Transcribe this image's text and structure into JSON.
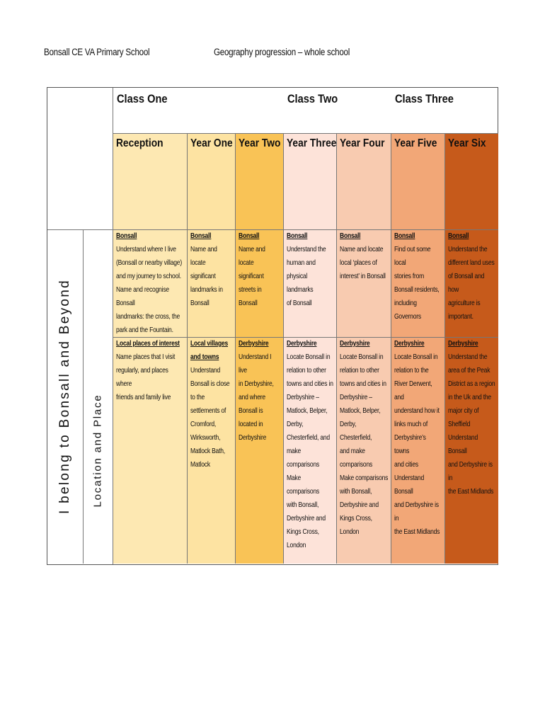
{
  "header": {
    "school": "Bonsall CE VA Primary School",
    "subject": "Geography progression – whole school"
  },
  "side": {
    "theme": "I belong to Bonsall and Beyond",
    "strand": "Location and Place"
  },
  "classes": [
    "Class One",
    "Class Two",
    "Class Three"
  ],
  "years": [
    "Reception",
    "Year One",
    "Year Two",
    "Year Three",
    "Year Four",
    "Year Five",
    "Year Six"
  ],
  "colors": [
    "#fde8b2",
    "#fde3a2",
    "#f9c356",
    "#fde3d9",
    "#f8cbb0",
    "#f2a777",
    "#c65a1b"
  ],
  "rows": [
    [
      [
        {
          "h": "Bonsall"
        },
        {
          "p": "Understand where I live\n(Bonsall or nearby village)\nand my journey to school."
        },
        {
          "p": " "
        },
        {
          "p": "Name and recognise Bonsall\nlandmarks: the cross, the\npark and the Fountain."
        }
      ],
      [
        {
          "h": "Bonsall"
        },
        {
          "p": "Name and locate\nsignificant\nlandmarks in\nBonsall"
        }
      ],
      [
        {
          "h": "Bonsall"
        },
        {
          "p": "Name and locate\nsignificant\nstreets in\nBonsall"
        }
      ],
      [
        {
          "h": "Bonsall"
        },
        {
          "p": "Understand the\nhuman and\nphysical landmarks\nof Bonsall"
        }
      ],
      [
        {
          "h": "Bonsall"
        },
        {
          "p": "Name and locate\nlocal ‘places of\ninterest’ in Bonsall"
        }
      ],
      [
        {
          "h": "Bonsall"
        },
        {
          "p": "Find out some local\nstories from\nBonsall residents,\nincluding\nGovernors"
        }
      ],
      [
        {
          "h": "Bonsall"
        },
        {
          "p": "Understand the\ndifferent land uses\nof Bonsall and how\nagriculture is\nimportant."
        }
      ]
    ],
    [
      [
        {
          "h": "Local places of interest"
        },
        {
          "p": "Name places that I visit\nregularly, and places where\nfriends and family live"
        }
      ],
      [
        {
          "h": "Local villages\nand towns"
        },
        {
          "p": "Understand\nBonsall is close\nto the\nsettlements of\nCromford,\nWirksworth,\nMatlock Bath,\nMatlock"
        }
      ],
      [
        {
          "h": "Derbyshire"
        },
        {
          "p": "Understand I live\nin Derbyshire,\nand where\nBonsall is\nlocated in\nDerbyshire"
        }
      ],
      [
        {
          "h": "Derbyshire"
        },
        {
          "p": "Locate Bonsall in\nrelation to other\ntowns and cities in\nDerbyshire –\nMatlock, Belper,\nDerby,\nChesterfield,  and\nmake comparisons"
        },
        {
          "p": " "
        },
        {
          "p": "Make comparisons\nwith Bonsall,\nDerbyshire and\nKings Cross,\nLondon"
        }
      ],
      [
        {
          "h": "Derbyshire"
        },
        {
          "p": " "
        },
        {
          "p": "Locate Bonsall in\nrelation to other\ntowns and cities in\nDerbyshire –\nMatlock, Belper,\nDerby, Chesterfield,\nand make\ncomparisons"
        },
        {
          "p": " "
        },
        {
          "p": "Make comparisons\nwith Bonsall,\nDerbyshire and\nKings Cross, London"
        }
      ],
      [
        {
          "h": "Derbyshire"
        },
        {
          "p": "Locate Bonsall in\nrelation to the\nRiver Derwent, and\nunderstand how it\nlinks much of\nDerbyshire’s towns\nand cities"
        },
        {
          "p": " "
        },
        {
          "p": "Understand Bonsall\nand Derbyshire is in\nthe East Midlands"
        }
      ],
      [
        {
          "h": "Derbyshire"
        },
        {
          "p": "Understand the\narea of the Peak\nDistrict as a region\nin the Uk and the\nmajor city of\nSheffield"
        },
        {
          "p": " "
        },
        {
          "p": "Understand Bonsall\nand Derbyshire is in\nthe East Midlands"
        }
      ]
    ]
  ]
}
